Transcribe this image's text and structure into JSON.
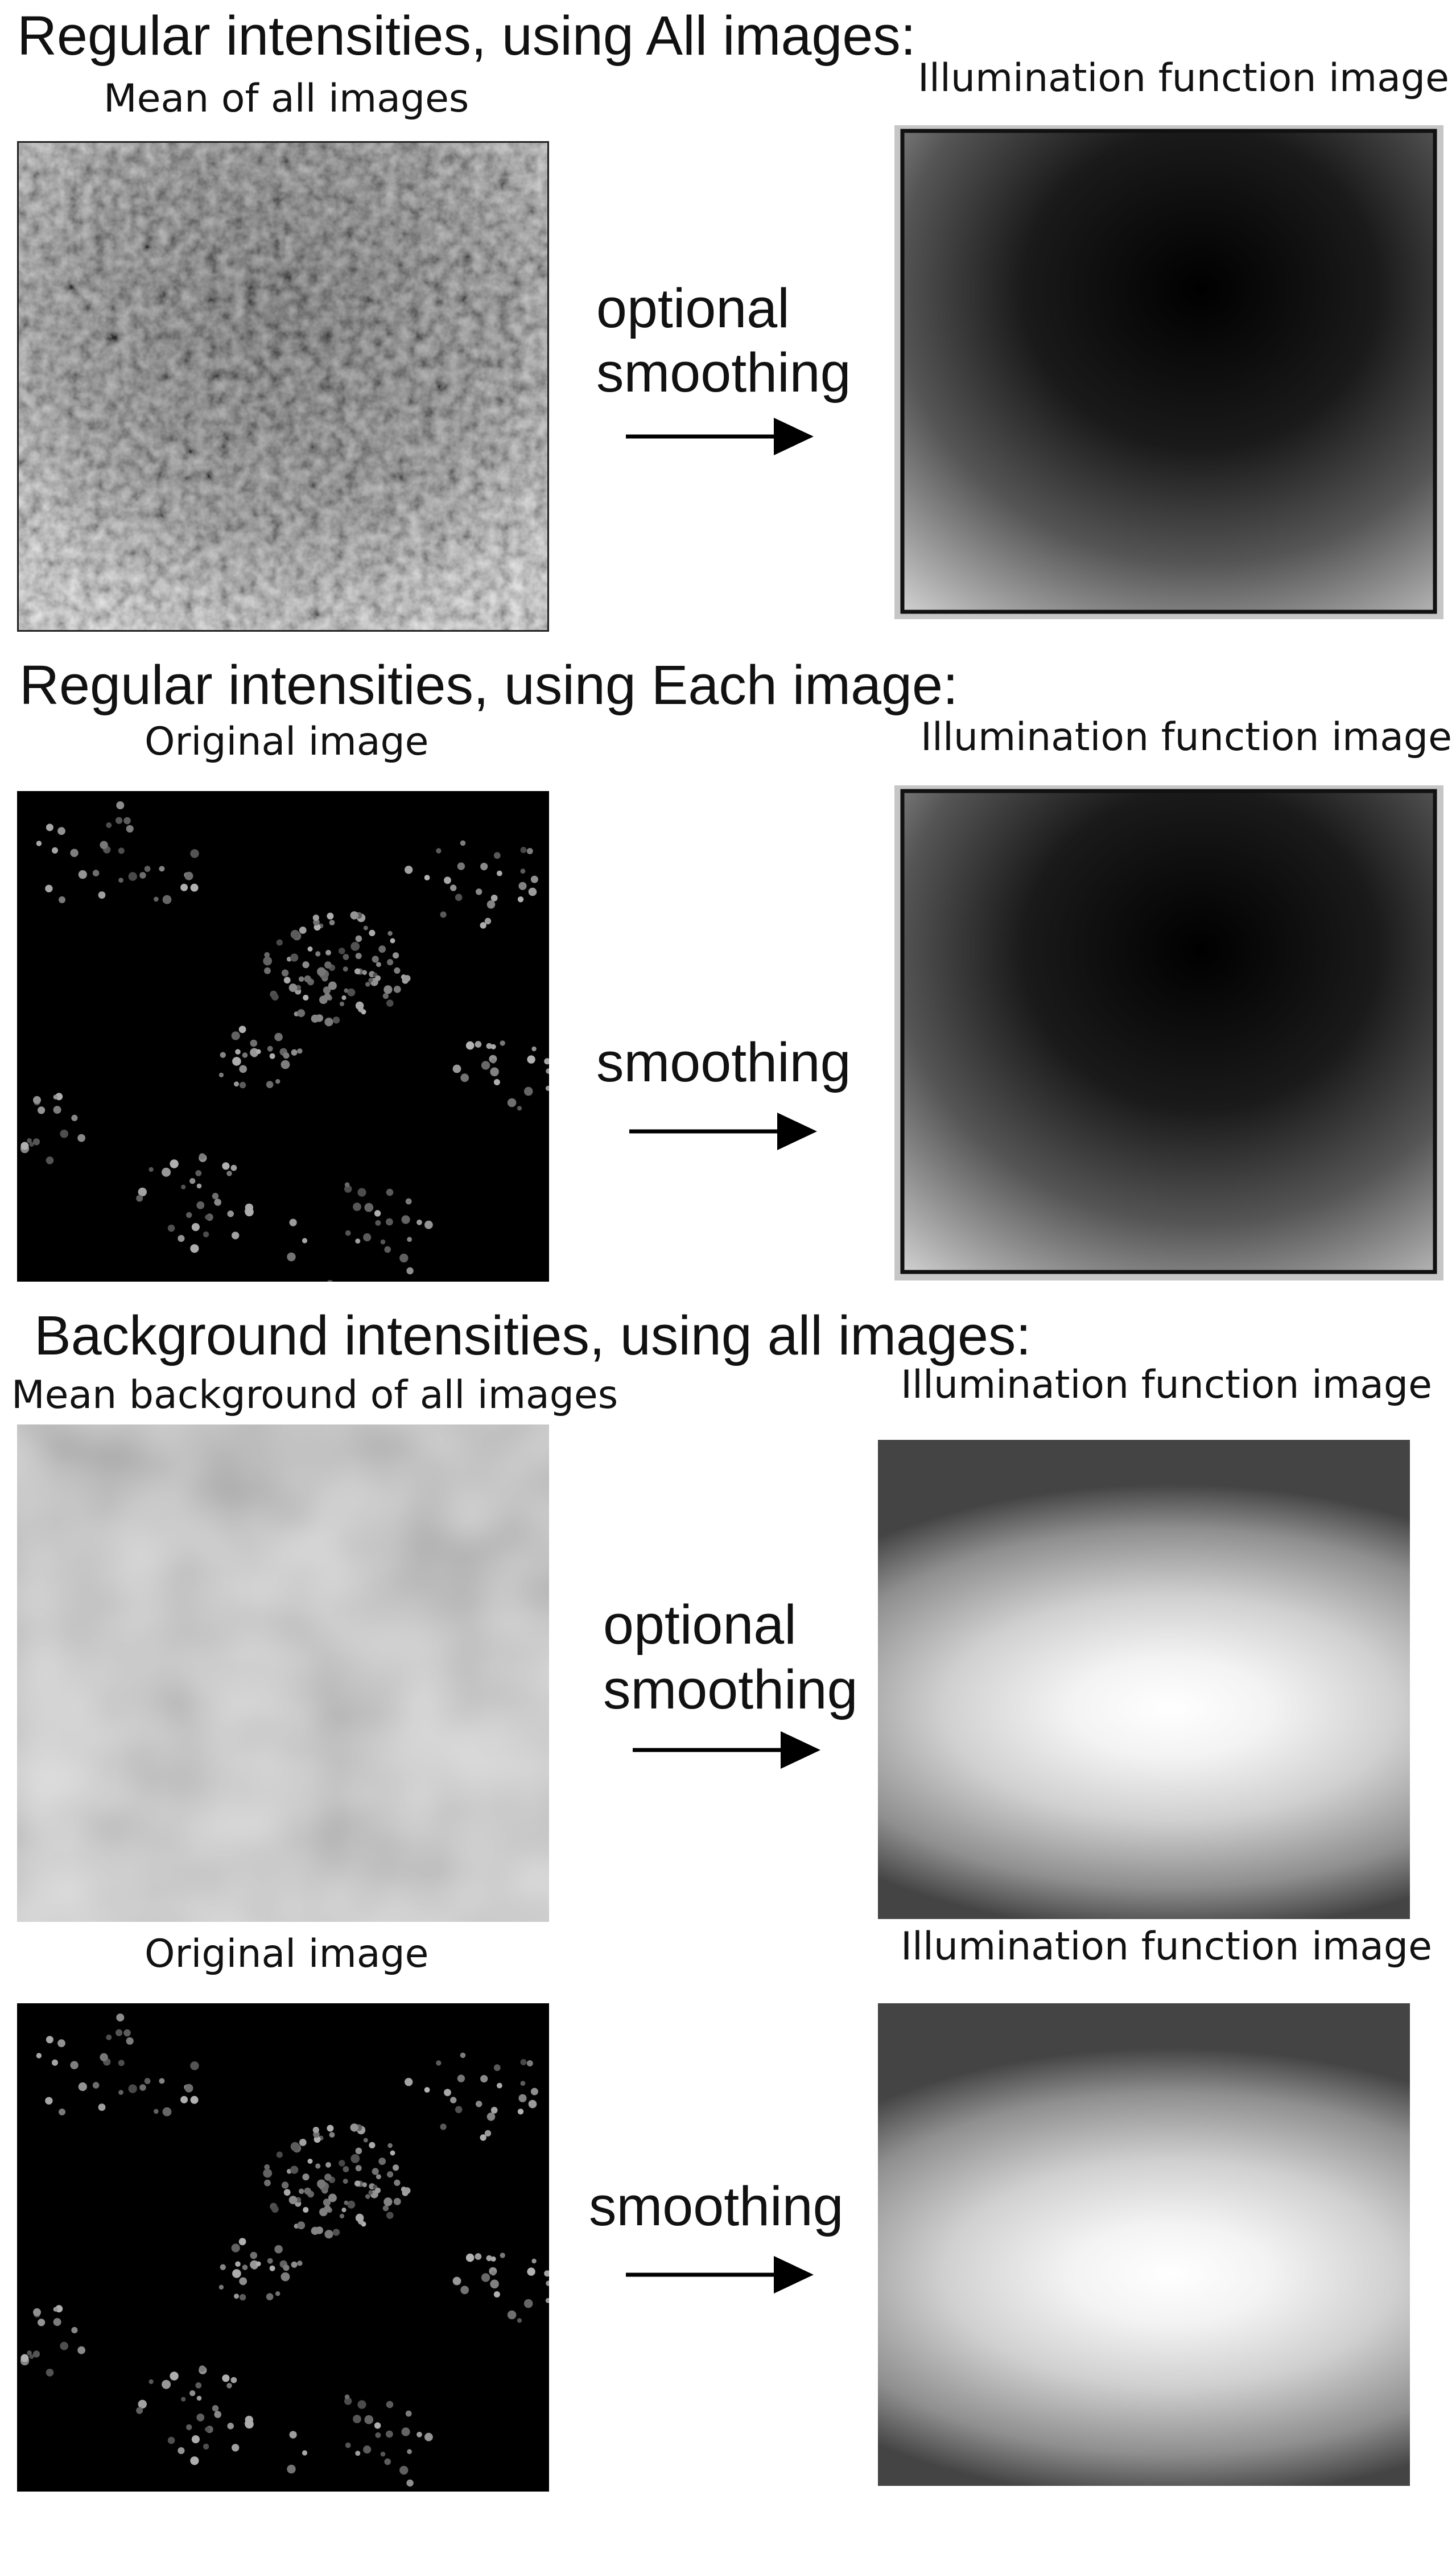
{
  "sections": [
    {
      "title": "Regular intensities, using All images:",
      "left_caption": "Mean of all images",
      "right_caption": "Illumination function image",
      "arrow_label": [
        "optional",
        "smoothing"
      ]
    },
    {
      "title": "Regular intensities, using Each image:",
      "left_caption": "Original image",
      "right_caption": "Illumination function image",
      "arrow_label": [
        "smoothing"
      ]
    },
    {
      "title": "Background intensities, using all images:",
      "left_caption": "Mean background of all images",
      "right_caption": "Illumination function image",
      "arrow_label": [
        "optional",
        "smoothing"
      ]
    },
    {
      "title": "",
      "left_caption": "Original image",
      "right_caption": "Illumination function image",
      "arrow_label": [
        "smoothing"
      ]
    }
  ],
  "panels": {
    "mean_all": "noisy-grey-image",
    "original": "dark-cell-image",
    "illum_regular": "dark-center-radial-gradient",
    "mean_background": "smooth-light-grey-image",
    "illum_background": "bright-center-elliptical-gradient"
  },
  "arrow_icon": "right-arrow-icon"
}
